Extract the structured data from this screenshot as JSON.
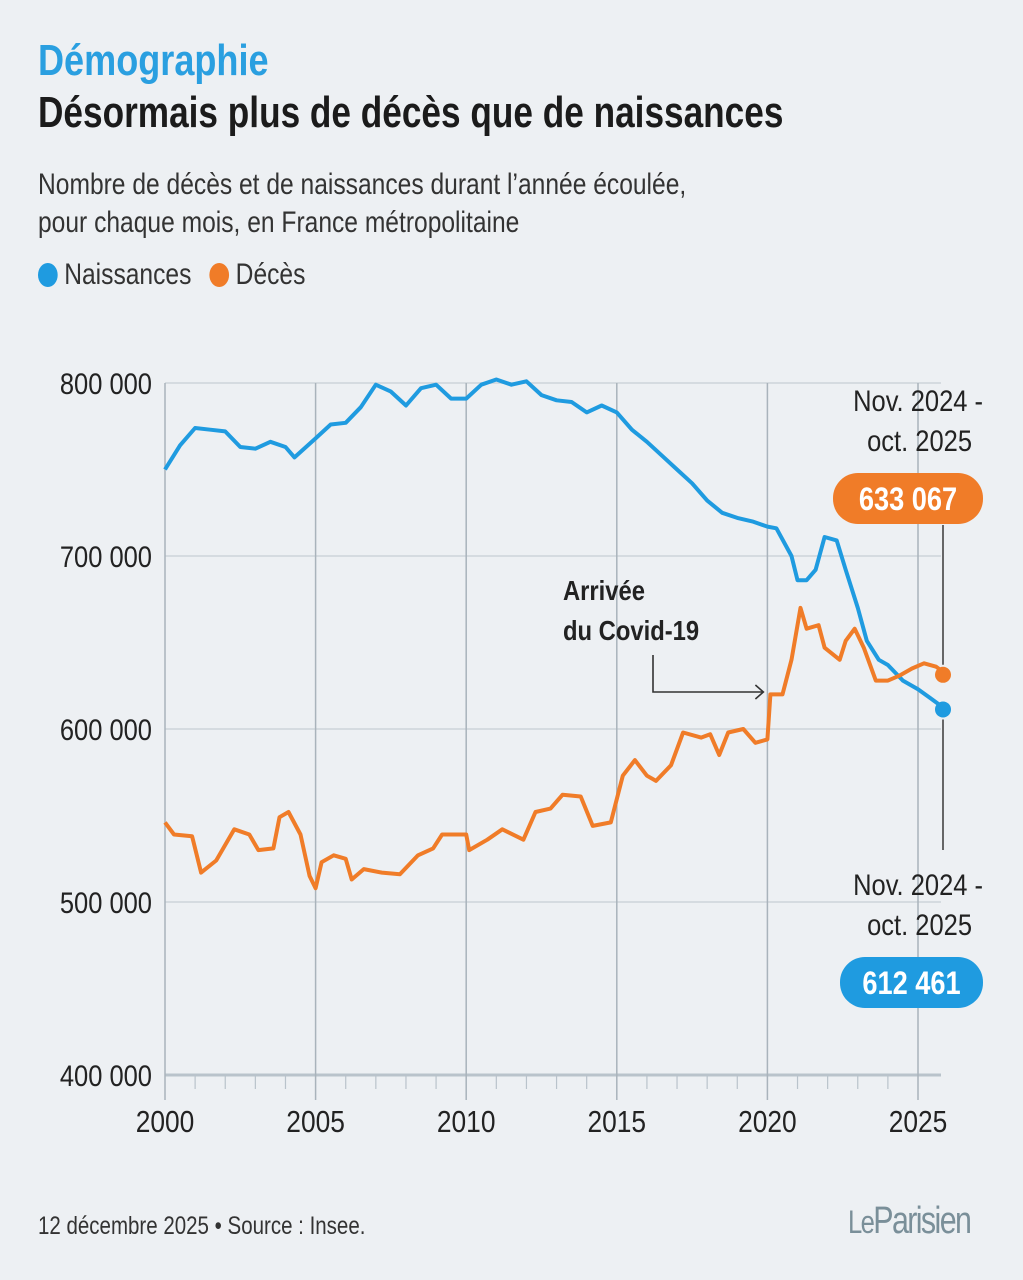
{
  "header": {
    "kicker": "Démographie",
    "title": "Désormais plus de décès que de naissances",
    "subtitle_line1": "Nombre de décès et de naissances durant l’année écoulée,",
    "subtitle_line2": "pour chaque mois, en France métropolitaine"
  },
  "legend": [
    {
      "label": "Naissances",
      "color": "#1f9be0"
    },
    {
      "label": "Décès",
      "color": "#f07c28"
    }
  ],
  "footer": {
    "source": "12 décembre 2025 • Source : Insee.",
    "logo": "Le Parisien"
  },
  "chart_data": {
    "type": "line",
    "title": "Désormais plus de décès que de naissances",
    "xlabel": "",
    "ylabel": "",
    "xlim": [
      2000,
      2025.9
    ],
    "ylim": [
      400000,
      800000
    ],
    "x_ticks": [
      "2000",
      "2005",
      "2010",
      "2015",
      "2020",
      "2025"
    ],
    "y_ticks": [
      "800 000",
      "700 000",
      "600 000",
      "500 000",
      "400 000"
    ],
    "y_tick_values": [
      800000,
      700000,
      600000,
      500000,
      400000
    ],
    "x_tick_values": [
      2000,
      2005,
      2010,
      2015,
      2020,
      2025
    ],
    "grid": true,
    "legend_position": "top-left",
    "series": [
      {
        "name": "Naissances",
        "color": "#1f9be0",
        "x": [
          2000.0,
          2000.5,
          2001.0,
          2001.5,
          2002.0,
          2002.5,
          2003.0,
          2003.5,
          2004.0,
          2004.3,
          2005.0,
          2005.5,
          2006.0,
          2006.5,
          2007.0,
          2007.5,
          2008.0,
          2008.5,
          2009.0,
          2009.5,
          2010.0,
          2010.5,
          2011.0,
          2011.5,
          2012.0,
          2012.5,
          2013.0,
          2013.5,
          2014.0,
          2014.5,
          2015.0,
          2015.5,
          2016.0,
          2016.5,
          2017.0,
          2017.5,
          2018.0,
          2018.5,
          2019.0,
          2019.5,
          2020.0,
          2020.3,
          2020.8,
          2021.0,
          2021.3,
          2021.6,
          2021.9,
          2022.3,
          2022.6,
          2023.0,
          2023.3,
          2023.7,
          2024.0,
          2024.5,
          2025.0,
          2025.4,
          2025.83
        ],
        "y": [
          750000,
          764000,
          774000,
          773000,
          772000,
          763000,
          762000,
          766000,
          763000,
          757000,
          768000,
          776000,
          777000,
          786000,
          799000,
          795000,
          787000,
          797000,
          799000,
          791000,
          791000,
          799000,
          802000,
          799000,
          801000,
          793000,
          790000,
          789000,
          783000,
          787000,
          783000,
          773000,
          766000,
          758000,
          750000,
          742000,
          732000,
          725000,
          722000,
          720000,
          717000,
          716000,
          700000,
          686000,
          686000,
          692000,
          711000,
          709000,
          692000,
          670000,
          651000,
          640000,
          637000,
          628000,
          623000,
          618000,
          612461
        ]
      },
      {
        "name": "Décès",
        "color": "#f07c28",
        "x": [
          2000.0,
          2000.3,
          2000.9,
          2001.2,
          2001.7,
          2002.3,
          2002.8,
          2003.1,
          2003.6,
          2003.8,
          2004.1,
          2004.5,
          2004.8,
          2005.0,
          2005.2,
          2005.6,
          2006.0,
          2006.2,
          2006.6,
          2007.2,
          2007.8,
          2008.4,
          2008.9,
          2009.2,
          2010.0,
          2010.1,
          2010.7,
          2011.2,
          2011.9,
          2012.3,
          2012.8,
          2013.2,
          2013.8,
          2014.2,
          2014.8,
          2015.2,
          2015.6,
          2016.0,
          2016.3,
          2016.8,
          2017.2,
          2017.8,
          2018.1,
          2018.4,
          2018.7,
          2019.2,
          2019.6,
          2020.0,
          2020.1,
          2020.5,
          2020.8,
          2021.1,
          2021.3,
          2021.7,
          2021.9,
          2022.4,
          2022.6,
          2022.9,
          2023.2,
          2023.6,
          2024.0,
          2024.4,
          2024.8,
          2025.2,
          2025.6,
          2025.83
        ],
        "y": [
          546000,
          539000,
          538000,
          517000,
          524000,
          542000,
          539000,
          530000,
          531000,
          549000,
          552000,
          539000,
          515000,
          508000,
          523000,
          527000,
          525000,
          513000,
          519000,
          517000,
          516000,
          527000,
          531000,
          539000,
          539000,
          530000,
          536000,
          542000,
          536000,
          552000,
          554000,
          562000,
          561000,
          544000,
          546000,
          573000,
          582000,
          573000,
          570000,
          579000,
          598000,
          595000,
          597000,
          585000,
          598000,
          600000,
          592000,
          594000,
          620000,
          620000,
          640000,
          670000,
          658000,
          660000,
          647000,
          640000,
          651000,
          658000,
          647000,
          628000,
          628000,
          631000,
          635000,
          638000,
          636000,
          633067
        ]
      }
    ],
    "annotations": [
      {
        "text_line1": "Arrivée",
        "text_line2": "du Covid-19",
        "x": 2020.0
      },
      {
        "series": "Décès",
        "period_line1": "Nov. 2024 -",
        "period_line2": "oct. 2025",
        "value": "633 067"
      },
      {
        "series": "Naissances",
        "period_line1": "Nov. 2024 -",
        "period_line2": "oct. 2025",
        "value": "612 461"
      }
    ]
  }
}
